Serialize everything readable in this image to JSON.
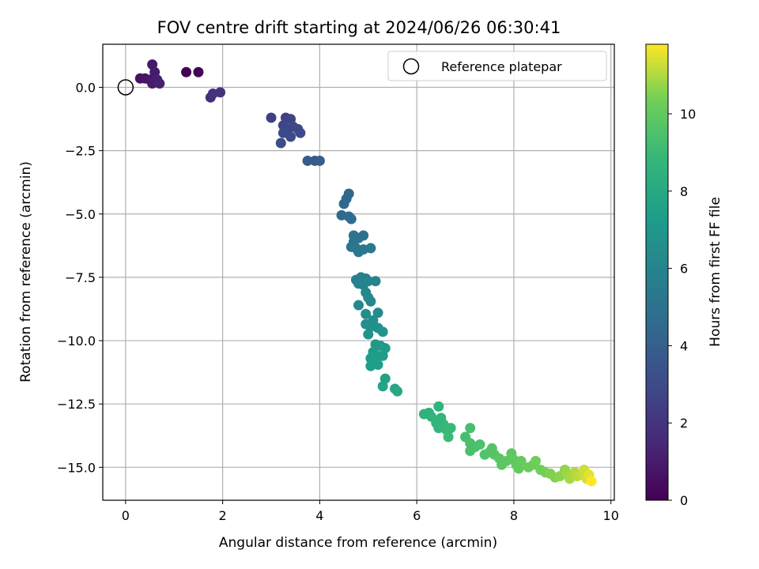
{
  "chart_data": {
    "type": "scatter",
    "title": "FOV centre drift starting at 2024/06/26 06:30:41",
    "xlabel": "Angular distance from reference (arcmin)",
    "ylabel": "Rotation from reference (arcmin)",
    "xlim": [
      -0.47,
      10.07
    ],
    "ylim": [
      -16.3,
      1.7
    ],
    "xticks": [
      0,
      2,
      4,
      6,
      8,
      10
    ],
    "xtick_labels": [
      "0",
      "2",
      "4",
      "6",
      "8",
      "10"
    ],
    "yticks": [
      0,
      -2.5,
      -5,
      -7.5,
      -10,
      -12.5,
      -15
    ],
    "ytick_labels": [
      "0.0",
      "−2.5",
      "−5.0",
      "−7.5",
      "−10.0",
      "−12.5",
      "−15.0"
    ],
    "grid": true,
    "legend": {
      "position": "top-right",
      "entries": [
        {
          "label": "Reference platepar",
          "marker": "open-circle"
        }
      ]
    },
    "reference_point": {
      "x": 0,
      "y": 0
    },
    "colorbar": {
      "label": "Hours from first FF file",
      "colormap": "viridis",
      "range": [
        0,
        11.8
      ],
      "ticks": [
        0,
        2,
        4,
        6,
        8,
        10
      ],
      "tick_labels": [
        "0",
        "2",
        "4",
        "6",
        "8",
        "10"
      ]
    },
    "points": [
      {
        "x": 1.25,
        "y": 0.6,
        "t": 0.0
      },
      {
        "x": 1.5,
        "y": 0.6,
        "t": 0.1
      },
      {
        "x": 0.3,
        "y": 0.35,
        "t": 0.6
      },
      {
        "x": 0.4,
        "y": 0.35,
        "t": 0.7
      },
      {
        "x": 0.5,
        "y": 0.3,
        "t": 0.8
      },
      {
        "x": 0.55,
        "y": 0.9,
        "t": 0.9
      },
      {
        "x": 0.6,
        "y": 0.6,
        "t": 1.0
      },
      {
        "x": 0.55,
        "y": 0.15,
        "t": 1.0
      },
      {
        "x": 0.65,
        "y": 0.3,
        "t": 1.1
      },
      {
        "x": 0.7,
        "y": 0.15,
        "t": 1.2
      },
      {
        "x": 1.75,
        "y": -0.4,
        "t": 1.8
      },
      {
        "x": 1.8,
        "y": -0.25,
        "t": 1.9
      },
      {
        "x": 1.95,
        "y": -0.2,
        "t": 2.0
      },
      {
        "x": 3.0,
        "y": -1.2,
        "t": 2.5
      },
      {
        "x": 3.3,
        "y": -1.2,
        "t": 2.6
      },
      {
        "x": 3.4,
        "y": -1.25,
        "t": 2.7
      },
      {
        "x": 3.25,
        "y": -1.5,
        "t": 2.7
      },
      {
        "x": 3.35,
        "y": -1.65,
        "t": 2.8
      },
      {
        "x": 3.45,
        "y": -1.55,
        "t": 2.8
      },
      {
        "x": 3.55,
        "y": -1.65,
        "t": 2.9
      },
      {
        "x": 3.6,
        "y": -1.8,
        "t": 3.0
      },
      {
        "x": 3.25,
        "y": -1.8,
        "t": 2.9
      },
      {
        "x": 3.4,
        "y": -1.95,
        "t": 3.0
      },
      {
        "x": 3.2,
        "y": -2.2,
        "t": 3.1
      },
      {
        "x": 3.75,
        "y": -2.9,
        "t": 3.7
      },
      {
        "x": 3.9,
        "y": -2.9,
        "t": 3.8
      },
      {
        "x": 4.0,
        "y": -2.9,
        "t": 3.9
      },
      {
        "x": 4.6,
        "y": -4.2,
        "t": 4.4
      },
      {
        "x": 4.55,
        "y": -4.4,
        "t": 4.5
      },
      {
        "x": 4.5,
        "y": -4.6,
        "t": 4.5
      },
      {
        "x": 4.45,
        "y": -5.05,
        "t": 4.6
      },
      {
        "x": 4.6,
        "y": -5.1,
        "t": 4.7
      },
      {
        "x": 4.65,
        "y": -5.2,
        "t": 4.7
      },
      {
        "x": 4.7,
        "y": -5.85,
        "t": 5.0
      },
      {
        "x": 4.8,
        "y": -5.95,
        "t": 5.0
      },
      {
        "x": 4.9,
        "y": -5.85,
        "t": 5.1
      },
      {
        "x": 4.7,
        "y": -6.1,
        "t": 5.1
      },
      {
        "x": 4.65,
        "y": -6.3,
        "t": 5.2
      },
      {
        "x": 4.75,
        "y": -6.35,
        "t": 5.2
      },
      {
        "x": 4.8,
        "y": -6.5,
        "t": 5.3
      },
      {
        "x": 4.9,
        "y": -6.4,
        "t": 5.3
      },
      {
        "x": 5.05,
        "y": -6.35,
        "t": 5.4
      },
      {
        "x": 4.75,
        "y": -7.6,
        "t": 5.7
      },
      {
        "x": 4.85,
        "y": -7.5,
        "t": 5.8
      },
      {
        "x": 4.95,
        "y": -7.55,
        "t": 5.8
      },
      {
        "x": 4.8,
        "y": -7.75,
        "t": 5.9
      },
      {
        "x": 4.9,
        "y": -7.8,
        "t": 5.9
      },
      {
        "x": 5.0,
        "y": -7.65,
        "t": 6.0
      },
      {
        "x": 5.15,
        "y": -7.65,
        "t": 6.0
      },
      {
        "x": 4.95,
        "y": -8.1,
        "t": 6.1
      },
      {
        "x": 5.0,
        "y": -8.3,
        "t": 6.2
      },
      {
        "x": 5.05,
        "y": -8.45,
        "t": 6.2
      },
      {
        "x": 4.8,
        "y": -8.6,
        "t": 6.2
      },
      {
        "x": 4.95,
        "y": -8.95,
        "t": 6.5
      },
      {
        "x": 5.2,
        "y": -8.9,
        "t": 6.5
      },
      {
        "x": 5.1,
        "y": -9.2,
        "t": 6.6
      },
      {
        "x": 4.95,
        "y": -9.35,
        "t": 6.6
      },
      {
        "x": 5.05,
        "y": -9.45,
        "t": 6.7
      },
      {
        "x": 5.2,
        "y": -9.5,
        "t": 6.7
      },
      {
        "x": 5.3,
        "y": -9.65,
        "t": 6.8
      },
      {
        "x": 5.0,
        "y": -9.75,
        "t": 6.8
      },
      {
        "x": 5.15,
        "y": -10.15,
        "t": 7.1
      },
      {
        "x": 5.25,
        "y": -10.2,
        "t": 7.1
      },
      {
        "x": 5.35,
        "y": -10.3,
        "t": 7.2
      },
      {
        "x": 5.1,
        "y": -10.45,
        "t": 7.2
      },
      {
        "x": 5.2,
        "y": -10.6,
        "t": 7.3
      },
      {
        "x": 5.3,
        "y": -10.6,
        "t": 7.3
      },
      {
        "x": 5.05,
        "y": -10.7,
        "t": 7.3
      },
      {
        "x": 5.15,
        "y": -10.85,
        "t": 7.4
      },
      {
        "x": 5.05,
        "y": -11.0,
        "t": 7.4
      },
      {
        "x": 5.2,
        "y": -10.95,
        "t": 7.4
      },
      {
        "x": 5.35,
        "y": -11.5,
        "t": 7.6
      },
      {
        "x": 5.3,
        "y": -11.8,
        "t": 7.7
      },
      {
        "x": 5.55,
        "y": -11.9,
        "t": 7.8
      },
      {
        "x": 5.6,
        "y": -12.0,
        "t": 7.9
      },
      {
        "x": 6.15,
        "y": -12.9,
        "t": 8.5
      },
      {
        "x": 6.25,
        "y": -12.85,
        "t": 8.5
      },
      {
        "x": 6.3,
        "y": -13.0,
        "t": 8.6
      },
      {
        "x": 6.45,
        "y": -12.6,
        "t": 8.6
      },
      {
        "x": 6.5,
        "y": -13.05,
        "t": 8.7
      },
      {
        "x": 6.4,
        "y": -13.25,
        "t": 8.7
      },
      {
        "x": 6.55,
        "y": -13.3,
        "t": 8.8
      },
      {
        "x": 6.45,
        "y": -13.45,
        "t": 8.8
      },
      {
        "x": 6.6,
        "y": -13.5,
        "t": 8.9
      },
      {
        "x": 6.7,
        "y": -13.45,
        "t": 8.9
      },
      {
        "x": 6.65,
        "y": -13.8,
        "t": 9.0
      },
      {
        "x": 7.1,
        "y": -13.45,
        "t": 9.3
      },
      {
        "x": 7.0,
        "y": -13.8,
        "t": 9.3
      },
      {
        "x": 7.1,
        "y": -14.05,
        "t": 9.4
      },
      {
        "x": 7.2,
        "y": -14.2,
        "t": 9.4
      },
      {
        "x": 7.1,
        "y": -14.35,
        "t": 9.4
      },
      {
        "x": 7.3,
        "y": -14.1,
        "t": 9.5
      },
      {
        "x": 7.4,
        "y": -14.5,
        "t": 9.6
      },
      {
        "x": 7.5,
        "y": -14.4,
        "t": 9.6
      },
      {
        "x": 7.55,
        "y": -14.25,
        "t": 9.7
      },
      {
        "x": 7.6,
        "y": -14.5,
        "t": 9.7
      },
      {
        "x": 7.7,
        "y": -14.65,
        "t": 9.8
      },
      {
        "x": 7.75,
        "y": -14.9,
        "t": 9.8
      },
      {
        "x": 7.85,
        "y": -14.75,
        "t": 9.9
      },
      {
        "x": 7.95,
        "y": -14.45,
        "t": 9.9
      },
      {
        "x": 8.0,
        "y": -14.7,
        "t": 10.0
      },
      {
        "x": 8.05,
        "y": -14.9,
        "t": 10.0
      },
      {
        "x": 8.1,
        "y": -15.05,
        "t": 10.1
      },
      {
        "x": 8.15,
        "y": -14.75,
        "t": 10.1
      },
      {
        "x": 8.3,
        "y": -15.0,
        "t": 10.2
      },
      {
        "x": 8.4,
        "y": -14.9,
        "t": 10.2
      },
      {
        "x": 8.45,
        "y": -14.75,
        "t": 10.3
      },
      {
        "x": 8.55,
        "y": -15.1,
        "t": 10.3
      },
      {
        "x": 8.65,
        "y": -15.2,
        "t": 10.4
      },
      {
        "x": 8.75,
        "y": -15.25,
        "t": 10.5
      },
      {
        "x": 8.85,
        "y": -15.4,
        "t": 10.5
      },
      {
        "x": 8.95,
        "y": -15.35,
        "t": 10.6
      },
      {
        "x": 9.05,
        "y": -15.1,
        "t": 10.7
      },
      {
        "x": 9.1,
        "y": -15.3,
        "t": 10.8
      },
      {
        "x": 9.15,
        "y": -15.45,
        "t": 10.9
      },
      {
        "x": 9.25,
        "y": -15.2,
        "t": 11.0
      },
      {
        "x": 9.3,
        "y": -15.35,
        "t": 11.1
      },
      {
        "x": 9.4,
        "y": -15.3,
        "t": 11.2
      },
      {
        "x": 9.45,
        "y": -15.1,
        "t": 11.3
      },
      {
        "x": 9.5,
        "y": -15.45,
        "t": 11.4
      },
      {
        "x": 9.55,
        "y": -15.3,
        "t": 11.5
      },
      {
        "x": 9.6,
        "y": -15.55,
        "t": 11.8
      }
    ]
  }
}
